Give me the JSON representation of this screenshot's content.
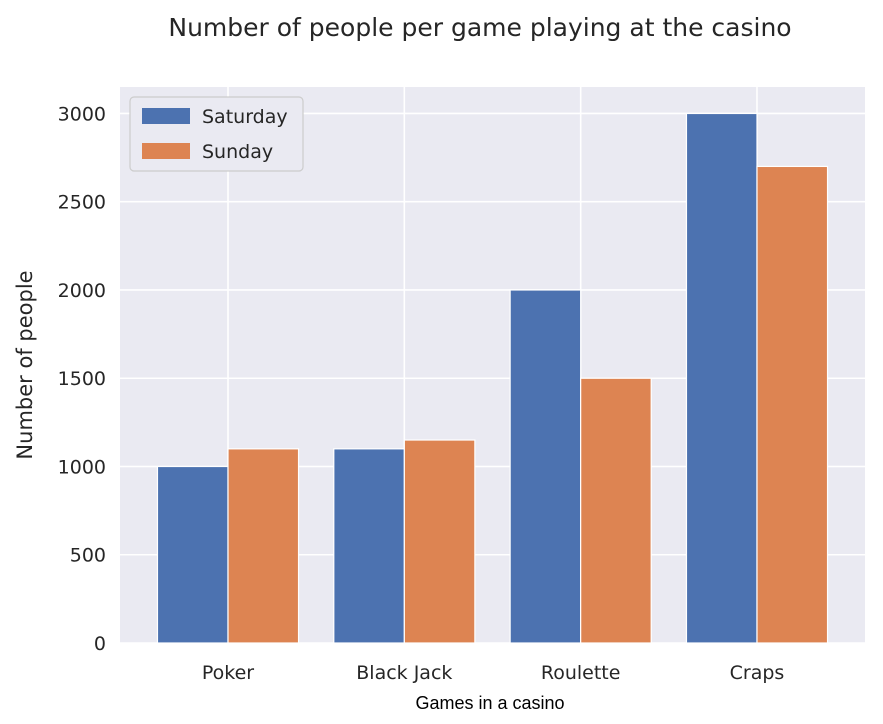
{
  "chart_data": {
    "type": "bar",
    "title": "Number of people per game playing at the casino",
    "xlabel": "Games in a casino",
    "ylabel": "Number of people",
    "categories": [
      "Poker",
      "Black Jack",
      "Roulette",
      "Craps"
    ],
    "series": [
      {
        "name": "Saturday",
        "color": "#4c72b0",
        "values": [
          1000,
          1100,
          2000,
          3000
        ]
      },
      {
        "name": "Sunday",
        "color": "#dd8452",
        "values": [
          1100,
          1150,
          1500,
          2700
        ]
      }
    ],
    "ylim": [
      0,
      3150
    ],
    "yticks": [
      0,
      500,
      1000,
      1500,
      2000,
      2500,
      3000
    ],
    "grid": true,
    "legend_position": "top-left",
    "background_color": "#eaeaf2"
  }
}
